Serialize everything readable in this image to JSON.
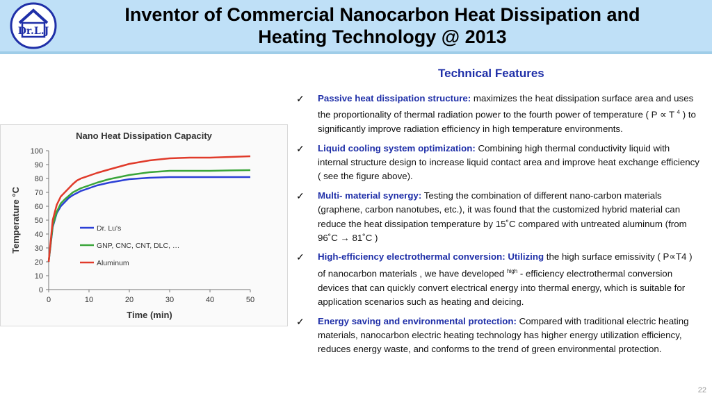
{
  "header": {
    "logo_text": "Dr.L.J",
    "title_line1": "Inventor of Commercial Nanocarbon Heat Dissipation and",
    "title_line2": "Heating Technology @ 2013"
  },
  "features": {
    "title": "Technical Features",
    "items": [
      {
        "head": "Passive heat dissipation structure:",
        "body": " maximizes the heat dissipation surface area and uses the proportionality of thermal radiation power to the fourth power of temperature ( P ∝ T ",
        "sup": "4",
        "tail": " ) to significantly improve radiation efficiency in high temperature environments."
      },
      {
        "head": "Liquid cooling system optimization:",
        "body": " Combining high thermal conductivity liquid with internal structure design to increase liquid contact area and improve heat exchange efficiency ( see the figure above)."
      },
      {
        "head": "Multi- material synergy:",
        "body": " Testing the combination of different nano-carbon materials (graphene, carbon nanotubes, etc.), it was found that the customized hybrid material can reduce the heat dissipation temperature by 15˚C compared with untreated aluminum (from 96˚C → 81˚C )"
      },
      {
        "head": "High-efficiency electrothermal conversion: Utilizing",
        "body": " the high surface emissivity ( P∝T4 ) of nanocarbon materials , we have developed ",
        "sup": "high",
        "tail": " - efficiency electrothermal conversion devices that can quickly convert electrical energy into thermal energy, which is suitable for application scenarios such as heating and deicing."
      },
      {
        "head": "Energy saving and environmental protection:",
        "body": " Compared with traditional electric heating materials, nanocarbon electric heating technology has higher energy utilization efficiency, reduces energy waste, and conforms to the trend of green environmental protection."
      }
    ]
  },
  "page_number": "22",
  "chart_data": {
    "type": "line",
    "title": "Nano Heat Dissipation Capacity",
    "xlabel": "Time (min)",
    "ylabel": "Temperature °C",
    "xlim": [
      0,
      50
    ],
    "ylim": [
      0,
      100
    ],
    "x_ticks": [
      0,
      10,
      20,
      30,
      40,
      50
    ],
    "y_ticks": [
      0,
      10,
      20,
      30,
      40,
      50,
      60,
      70,
      80,
      90,
      100
    ],
    "grid": false,
    "legend_position": "middle-left",
    "series": [
      {
        "name": "Dr. Lu's",
        "color": "#2b3fd6",
        "x": [
          0,
          1,
          2,
          3,
          4,
          5,
          6,
          7,
          8,
          10,
          12,
          15,
          20,
          25,
          30,
          35,
          40,
          45,
          50
        ],
        "y": [
          20,
          45,
          55,
          60,
          63,
          66,
          68,
          69.5,
          71,
          73,
          75,
          77,
          79.5,
          80.5,
          81,
          81,
          81,
          81,
          81
        ]
      },
      {
        "name": "GNP, CNC, CNT, DLC, …",
        "color": "#3aa53a",
        "x": [
          0,
          1,
          2,
          3,
          4,
          5,
          6,
          7,
          8,
          10,
          12,
          15,
          20,
          25,
          30,
          35,
          40,
          45,
          50
        ],
        "y": [
          20,
          46,
          56,
          62,
          65,
          67.5,
          70,
          71.5,
          73,
          75,
          77,
          79.5,
          82.5,
          84.5,
          85.5,
          85.5,
          85.5,
          85.8,
          86
        ]
      },
      {
        "name": "Aluminum",
        "color": "#e03a2a",
        "x": [
          0,
          1,
          2,
          3,
          4,
          5,
          6,
          7,
          8,
          10,
          12,
          15,
          20,
          25,
          30,
          35,
          40,
          45,
          50
        ],
        "y": [
          20,
          50,
          61,
          67,
          70,
          73,
          76,
          78.5,
          80,
          82,
          84,
          86.5,
          90.5,
          93,
          94.5,
          95,
          95,
          95.5,
          96
        ]
      }
    ]
  }
}
